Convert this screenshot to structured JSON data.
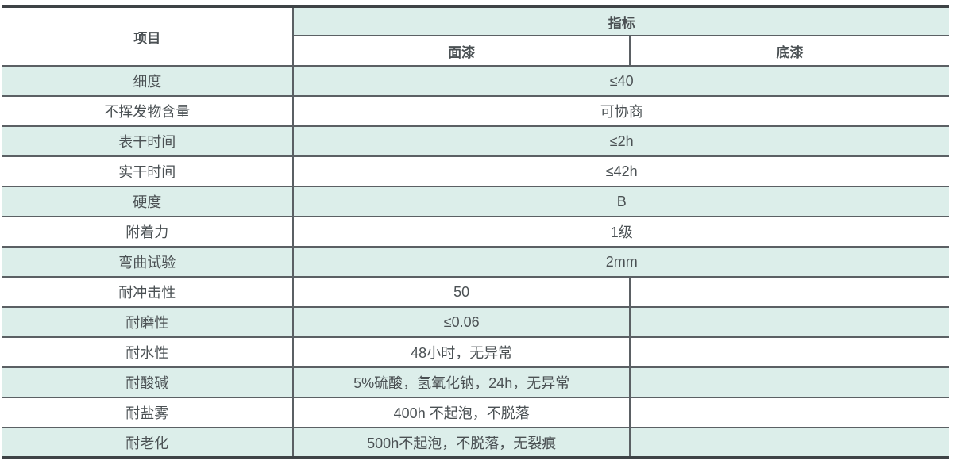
{
  "colors": {
    "row_accent": "#dceeea",
    "border_inner": "#5b6064",
    "border_outer": "#3e4346",
    "text": "#4b5154",
    "background": "#ffffff"
  },
  "table": {
    "header": {
      "item": "项目",
      "indicator": "指标",
      "topcoat": "面漆",
      "primer": "底漆"
    },
    "rows": [
      {
        "item": "细度",
        "merged": "≤40"
      },
      {
        "item": "不挥发物含量",
        "merged": "可协商"
      },
      {
        "item": "表干时间",
        "merged": "≤2h"
      },
      {
        "item": "实干时间",
        "merged": "≤42h"
      },
      {
        "item": "硬度",
        "merged": "B"
      },
      {
        "item": "附着力",
        "merged": "1级"
      },
      {
        "item": "弯曲试验",
        "merged": "2mm"
      },
      {
        "item": "耐冲击性",
        "topcoat": "50",
        "primer": ""
      },
      {
        "item": "耐磨性",
        "topcoat": "≤0.06",
        "primer": ""
      },
      {
        "item": "耐水性",
        "topcoat": "48小时，无异常",
        "primer": ""
      },
      {
        "item": "耐酸碱",
        "topcoat": "5%硫酸，氢氧化钠，24h，无异常",
        "primer": ""
      },
      {
        "item": "耐盐雾",
        "topcoat": "400h 不起泡，不脱落",
        "primer": ""
      },
      {
        "item": "耐老化",
        "topcoat": "500h不起泡，不脱落，无裂痕",
        "primer": ""
      }
    ]
  }
}
